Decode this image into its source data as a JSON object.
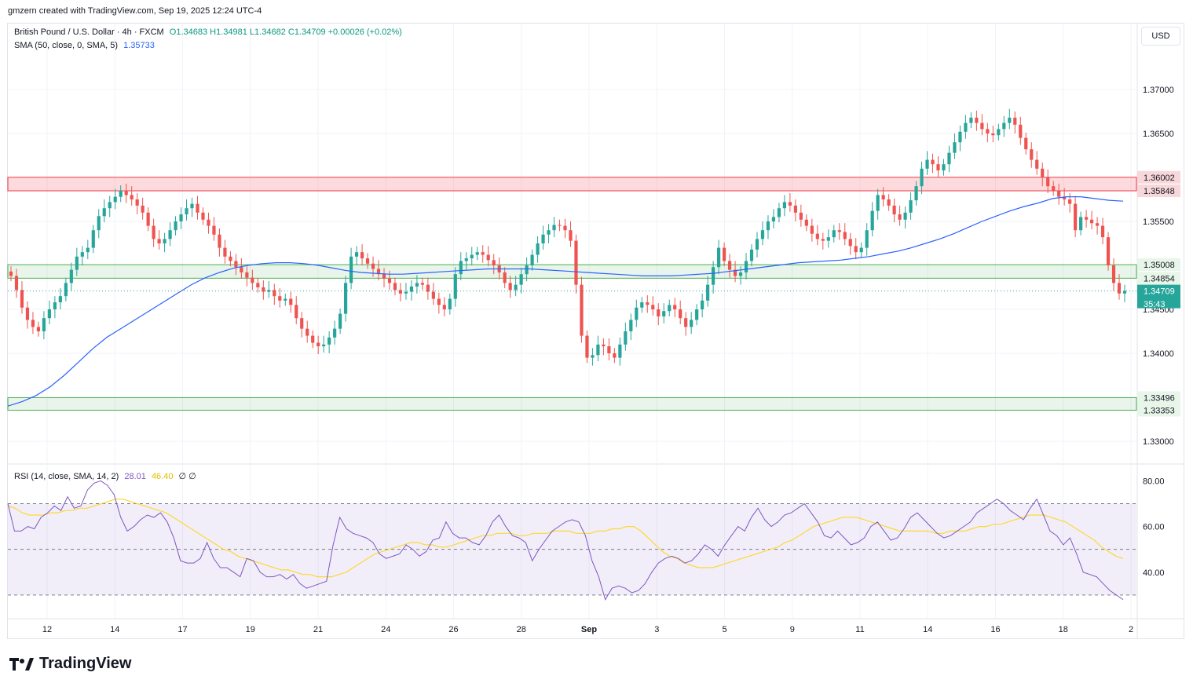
{
  "header": {
    "credit": "gmzern created with TradingView.com, Sep 19, 2025 12:24 UTC-4"
  },
  "legend": {
    "symbol": "British Pound / U.S. Dollar · 4h · FXCM",
    "ohlc": "O1.34683 H1.34981 L1.34682 C1.34709 +0.00026 (+0.02%)",
    "sma_label": "SMA (50, close, 0, SMA, 5)",
    "sma_value": "1.35733",
    "rsi_label": "RSI (14, close, SMA, 14, 2)",
    "rsi_value": "28.01",
    "rsi_sma_value": "46.40",
    "rsi_extra": "∅ ∅"
  },
  "currency": "USD",
  "countdown": "35:43",
  "brand": "TradingView",
  "colors": {
    "up": "#26a69a",
    "down": "#ef5350",
    "sma": "#2962ff",
    "rsi": "#7e57c2",
    "rsi_sma": "#fdd835",
    "resistance": "#f23645",
    "support": "#4caf50",
    "last": "#26a69a"
  },
  "chart_data": {
    "type": "candlestick",
    "title": "British Pound / U.S. Dollar · 4h · FXCM",
    "price_axis": {
      "min": 1.3275,
      "max": 1.3775,
      "ticks": [
        "1.33000",
        "1.34000",
        "1.34500",
        "1.35500",
        "1.36500",
        "1.37000"
      ]
    },
    "time_axis": [
      "12",
      "14",
      "17",
      "19",
      "21",
      "24",
      "26",
      "28",
      "Sep",
      "3",
      "5",
      "9",
      "11",
      "14",
      "16",
      "18",
      "2"
    ],
    "candles_count": 170,
    "close_series": [
      1.3488,
      1.3472,
      1.3452,
      1.3438,
      1.343,
      1.3425,
      1.344,
      1.345,
      1.3458,
      1.3465,
      1.348,
      1.3495,
      1.351,
      1.3515,
      1.352,
      1.354,
      1.3556,
      1.3565,
      1.3572,
      1.3578,
      1.3585,
      1.358,
      1.3575,
      1.3568,
      1.356,
      1.3545,
      1.353,
      1.3525,
      1.353,
      1.354,
      1.355,
      1.3558,
      1.3565,
      1.357,
      1.356,
      1.3552,
      1.3545,
      1.3535,
      1.352,
      1.351,
      1.3505,
      1.3498,
      1.3492,
      1.3486,
      1.348,
      1.3475,
      1.347,
      1.3472,
      1.3465,
      1.346,
      1.3462,
      1.3455,
      1.344,
      1.3428,
      1.342,
      1.3412,
      1.3408,
      1.341,
      1.3418,
      1.3428,
      1.3445,
      1.348,
      1.351,
      1.3515,
      1.3508,
      1.3502,
      1.3496,
      1.349,
      1.3485,
      1.348,
      1.3472,
      1.3468,
      1.347,
      1.3476,
      1.348,
      1.3478,
      1.347,
      1.3462,
      1.3455,
      1.345,
      1.3462,
      1.349,
      1.3505,
      1.3508,
      1.3512,
      1.3515,
      1.3512,
      1.3506,
      1.35,
      1.3492,
      1.348,
      1.3472,
      1.3478,
      1.349,
      1.35,
      1.3512,
      1.3525,
      1.3535,
      1.354,
      1.3546,
      1.3545,
      1.354,
      1.3528,
      1.3478,
      1.342,
      1.3395,
      1.3398,
      1.341,
      1.3408,
      1.34,
      1.3395,
      1.341,
      1.3425,
      1.3438,
      1.3452,
      1.3458,
      1.3455,
      1.345,
      1.3442,
      1.3448,
      1.3455,
      1.345,
      1.344,
      1.343,
      1.3438,
      1.345,
      1.346,
      1.3478,
      1.3498,
      1.352,
      1.3505,
      1.3495,
      1.3488,
      1.3492,
      1.3505,
      1.3518,
      1.353,
      1.354,
      1.355,
      1.3555,
      1.3565,
      1.3572,
      1.3568,
      1.356,
      1.3552,
      1.3545,
      1.3536,
      1.353,
      1.3528,
      1.3532,
      1.354,
      1.3538,
      1.353,
      1.3522,
      1.3515,
      1.352,
      1.354,
      1.3562,
      1.358,
      1.3575,
      1.3568,
      1.3558,
      1.3552,
      1.356,
      1.3574,
      1.359,
      1.361,
      1.362,
      1.3615,
      1.3608,
      1.3615,
      1.3628,
      1.364,
      1.3652,
      1.3662,
      1.3668,
      1.3662,
      1.3655,
      1.365,
      1.3648,
      1.3655,
      1.3662,
      1.3668,
      1.366,
      1.3645,
      1.3632,
      1.362,
      1.361,
      1.36,
      1.359,
      1.3585,
      1.3578,
      1.3575,
      1.357,
      1.354,
      1.3555,
      1.3552,
      1.3548,
      1.3545,
      1.3532,
      1.35,
      1.348,
      1.3468,
      1.3471
    ],
    "sma_series": [
      1.334,
      1.3345,
      1.3352,
      1.3362,
      1.3375,
      1.339,
      1.3405,
      1.3418,
      1.3428,
      1.3438,
      1.3448,
      1.3458,
      1.3468,
      1.3478,
      1.3486,
      1.3492,
      1.3497,
      1.35,
      1.3502,
      1.3503,
      1.3503,
      1.3502,
      1.35,
      1.3497,
      1.3494,
      1.3492,
      1.3491,
      1.349,
      1.349,
      1.3491,
      1.3492,
      1.3493,
      1.3494,
      1.3495,
      1.3496,
      1.3496,
      1.3496,
      1.3496,
      1.3495,
      1.3494,
      1.3493,
      1.3492,
      1.3491,
      1.349,
      1.3489,
      1.3488,
      1.3488,
      1.3488,
      1.3489,
      1.349,
      1.3491,
      1.3493,
      1.3495,
      1.3497,
      1.3499,
      1.3501,
      1.3503,
      1.3504,
      1.3505,
      1.3506,
      1.3508,
      1.351,
      1.3513,
      1.3516,
      1.352,
      1.3525,
      1.353,
      1.3536,
      1.3543,
      1.355,
      1.3556,
      1.3562,
      1.3567,
      1.3571,
      1.3576,
      1.3578,
      1.3578,
      1.3576,
      1.3574,
      1.3573
    ],
    "resistance_zone": [
      1.35848,
      1.36002
    ],
    "support_zones": [
      [
        1.34854,
        1.35008
      ],
      [
        1.33353,
        1.33496
      ]
    ],
    "price_labels": [
      "1.36002",
      "1.35848",
      "1.35008",
      "1.34854",
      "1.34709",
      "1.33496",
      "1.33353"
    ],
    "last_price": "1.34709",
    "rsi": {
      "levels": [
        30,
        50,
        70
      ],
      "ticks": [
        "80.00",
        "60.00",
        "40.00"
      ],
      "ylim": [
        20,
        87
      ],
      "values": [
        70,
        58,
        58,
        60,
        59,
        64,
        66,
        69,
        67,
        73,
        68,
        69,
        76,
        79,
        80,
        78,
        74,
        64,
        58,
        60,
        63,
        65,
        64,
        66,
        62,
        55,
        45,
        44,
        44,
        46,
        53,
        46,
        42,
        42,
        40,
        38,
        46,
        45,
        40,
        38,
        38,
        39,
        37,
        39,
        35,
        33,
        34,
        35,
        36,
        52,
        64,
        59,
        57,
        56,
        55,
        53,
        48,
        46,
        47,
        48,
        52,
        50,
        47,
        49,
        54,
        55,
        62,
        57,
        55,
        55,
        53,
        52,
        56,
        62,
        65,
        60,
        56,
        55,
        53,
        45,
        50,
        54,
        58,
        60,
        62,
        63,
        62,
        56,
        45,
        38,
        28,
        33,
        34,
        33,
        31,
        32,
        35,
        40,
        44,
        46,
        47,
        46,
        44,
        45,
        48,
        52,
        50,
        47,
        52,
        56,
        60,
        58,
        64,
        68,
        63,
        60,
        62,
        65,
        66,
        68,
        70,
        66,
        62,
        56,
        55,
        58,
        55,
        52,
        53,
        55,
        60,
        62,
        58,
        54,
        55,
        59,
        64,
        66,
        63,
        60,
        57,
        55,
        56,
        58,
        60,
        62,
        66,
        68,
        70,
        72,
        70,
        67,
        65,
        63,
        68,
        72,
        65,
        58,
        56,
        52,
        55,
        48,
        40,
        39,
        38,
        35,
        32,
        30,
        28
      ],
      "rsi_sma": [
        69,
        68,
        66,
        65,
        65,
        65,
        66,
        66,
        67,
        67,
        68,
        68,
        69,
        70,
        71,
        72,
        72,
        71,
        70,
        69,
        68,
        67,
        66,
        64,
        62,
        60,
        58,
        56,
        54,
        52,
        50,
        49,
        47,
        46,
        45,
        44,
        43,
        42,
        41,
        41,
        40,
        39,
        39,
        38,
        38,
        38,
        39,
        40,
        42,
        44,
        46,
        48,
        49,
        50,
        51,
        52,
        53,
        53,
        52,
        52,
        51,
        51,
        52,
        53,
        54,
        55,
        56,
        56,
        57,
        57,
        57,
        56,
        56,
        57,
        57,
        57,
        58,
        58,
        58,
        57,
        57,
        57,
        58,
        58,
        59,
        59,
        60,
        60,
        58,
        55,
        52,
        49,
        47,
        46,
        44,
        43,
        42,
        42,
        42,
        43,
        44,
        45,
        46,
        47,
        48,
        49,
        50,
        51,
        53,
        54,
        56,
        58,
        60,
        61,
        62,
        63,
        64,
        64,
        64,
        63,
        62,
        61,
        60,
        59,
        58,
        58,
        58,
        58,
        58,
        57,
        57,
        58,
        58,
        58,
        59,
        60,
        60,
        61,
        61,
        62,
        63,
        64,
        65,
        65,
        65,
        64,
        63,
        62,
        60,
        58,
        56,
        54,
        51,
        49,
        47,
        46
      ]
    }
  }
}
